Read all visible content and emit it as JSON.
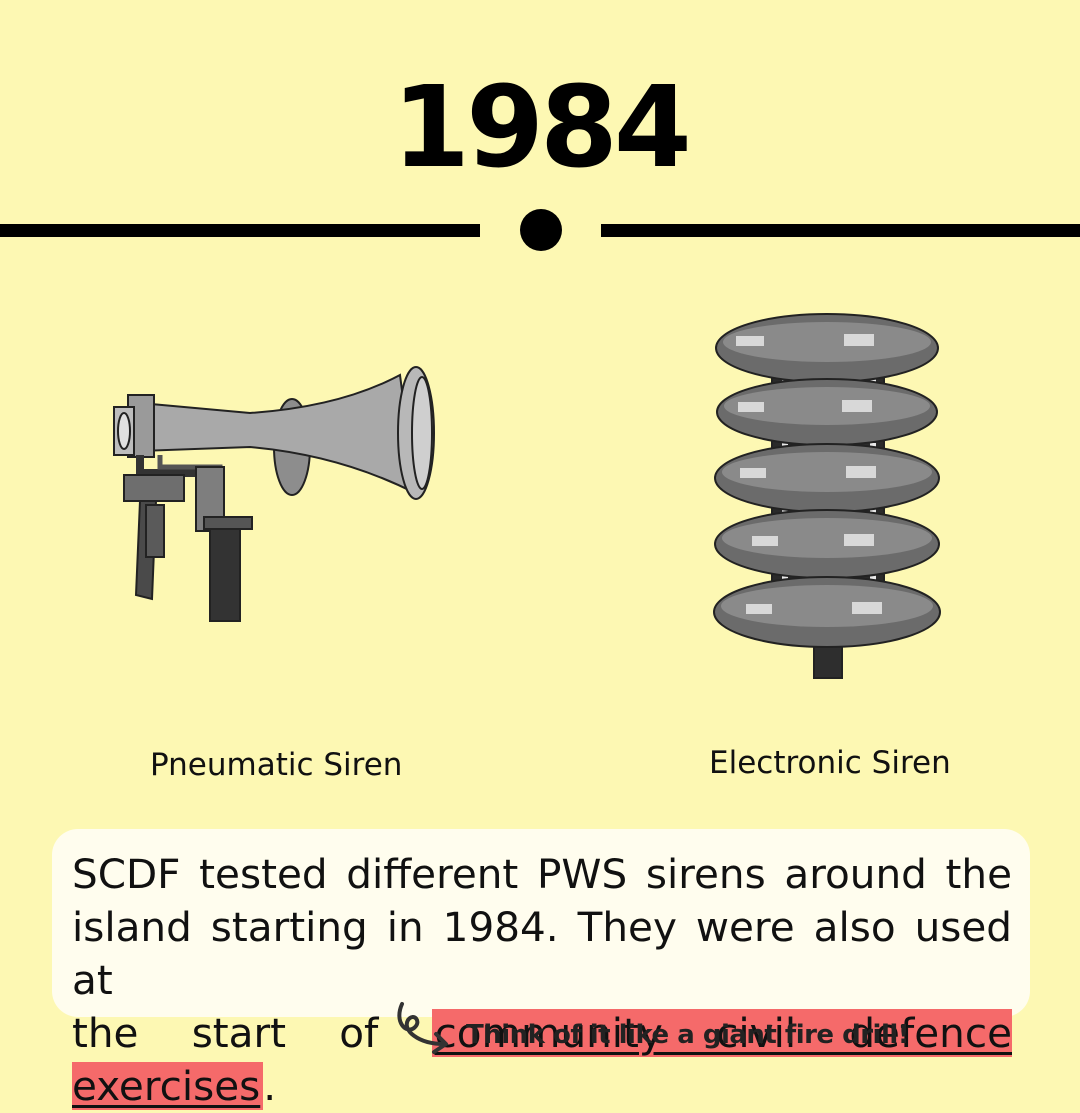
{
  "year": "1984",
  "sirens": {
    "left": {
      "caption": "Pneumatic Siren",
      "icon": "pneumatic-siren-icon"
    },
    "right": {
      "caption": "Electronic Siren",
      "icon": "electronic-siren-icon"
    }
  },
  "description": {
    "line1": "SCDF tested different PWS sirens around the",
    "line2": "island starting in 1984. They were also used at",
    "line3_start": "the start of ",
    "highlight": "community civil defence exercises",
    "line3_end": "."
  },
  "note": "Think of it like a giant fire drill!",
  "colors": {
    "background": "#fdf8b3",
    "highlight": "#f56a6a",
    "box": "#fffdee"
  }
}
